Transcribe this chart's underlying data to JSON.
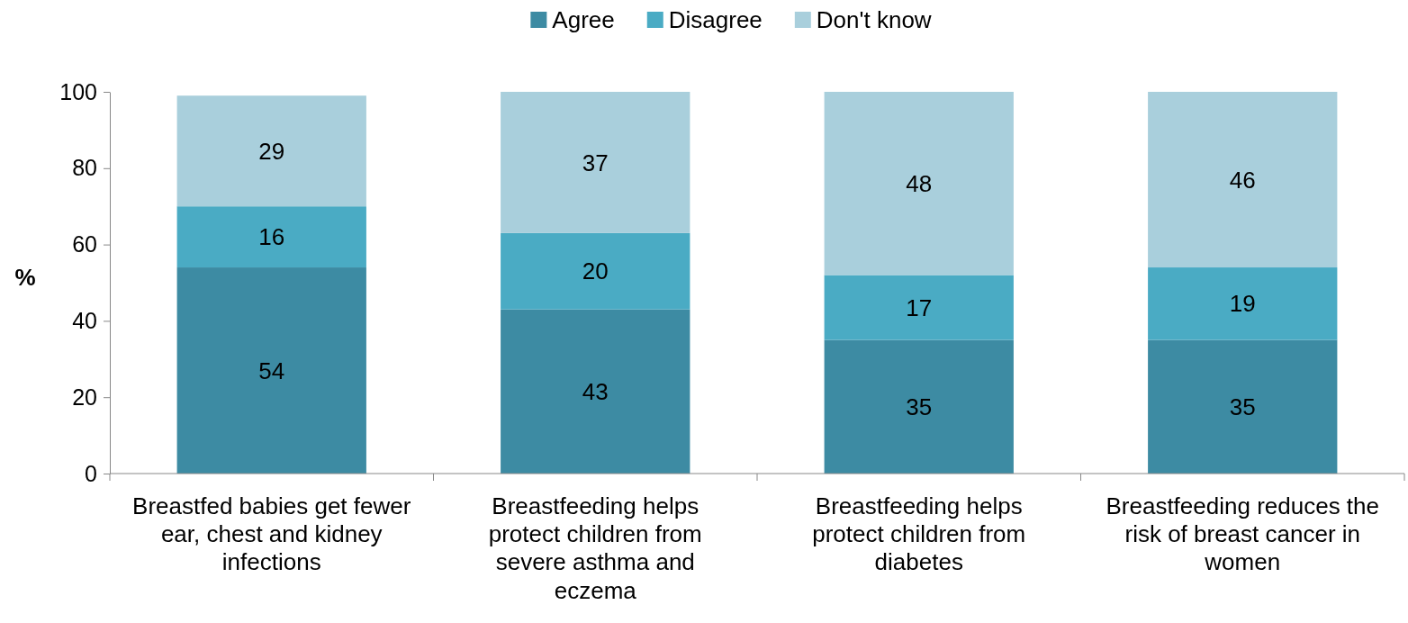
{
  "chart_data": {
    "type": "bar",
    "stacked": true,
    "ylabel": "%",
    "categories": [
      "Breastfed babies get fewer ear, chest and kidney infections",
      "Breastfeeding helps protect children from severe asthma and eczema",
      "Breastfeeding helps protect children from diabetes",
      "Breastfeeding reduces the risk of breast cancer in women"
    ],
    "series": [
      {
        "name": "Agree",
        "color": "#3d8ba3",
        "values": [
          54,
          43,
          35,
          35
        ]
      },
      {
        "name": "Disagree",
        "color": "#4aabc4",
        "values": [
          16,
          20,
          17,
          19
        ]
      },
      {
        "name": "Don't know",
        "color": "#a9cfdc",
        "values": [
          29,
          37,
          48,
          46
        ]
      }
    ],
    "ylim": [
      0,
      100
    ],
    "yticks": [
      0,
      20,
      40,
      60,
      80,
      100
    ],
    "grid": false,
    "legend": "top",
    "data_labels": true
  }
}
